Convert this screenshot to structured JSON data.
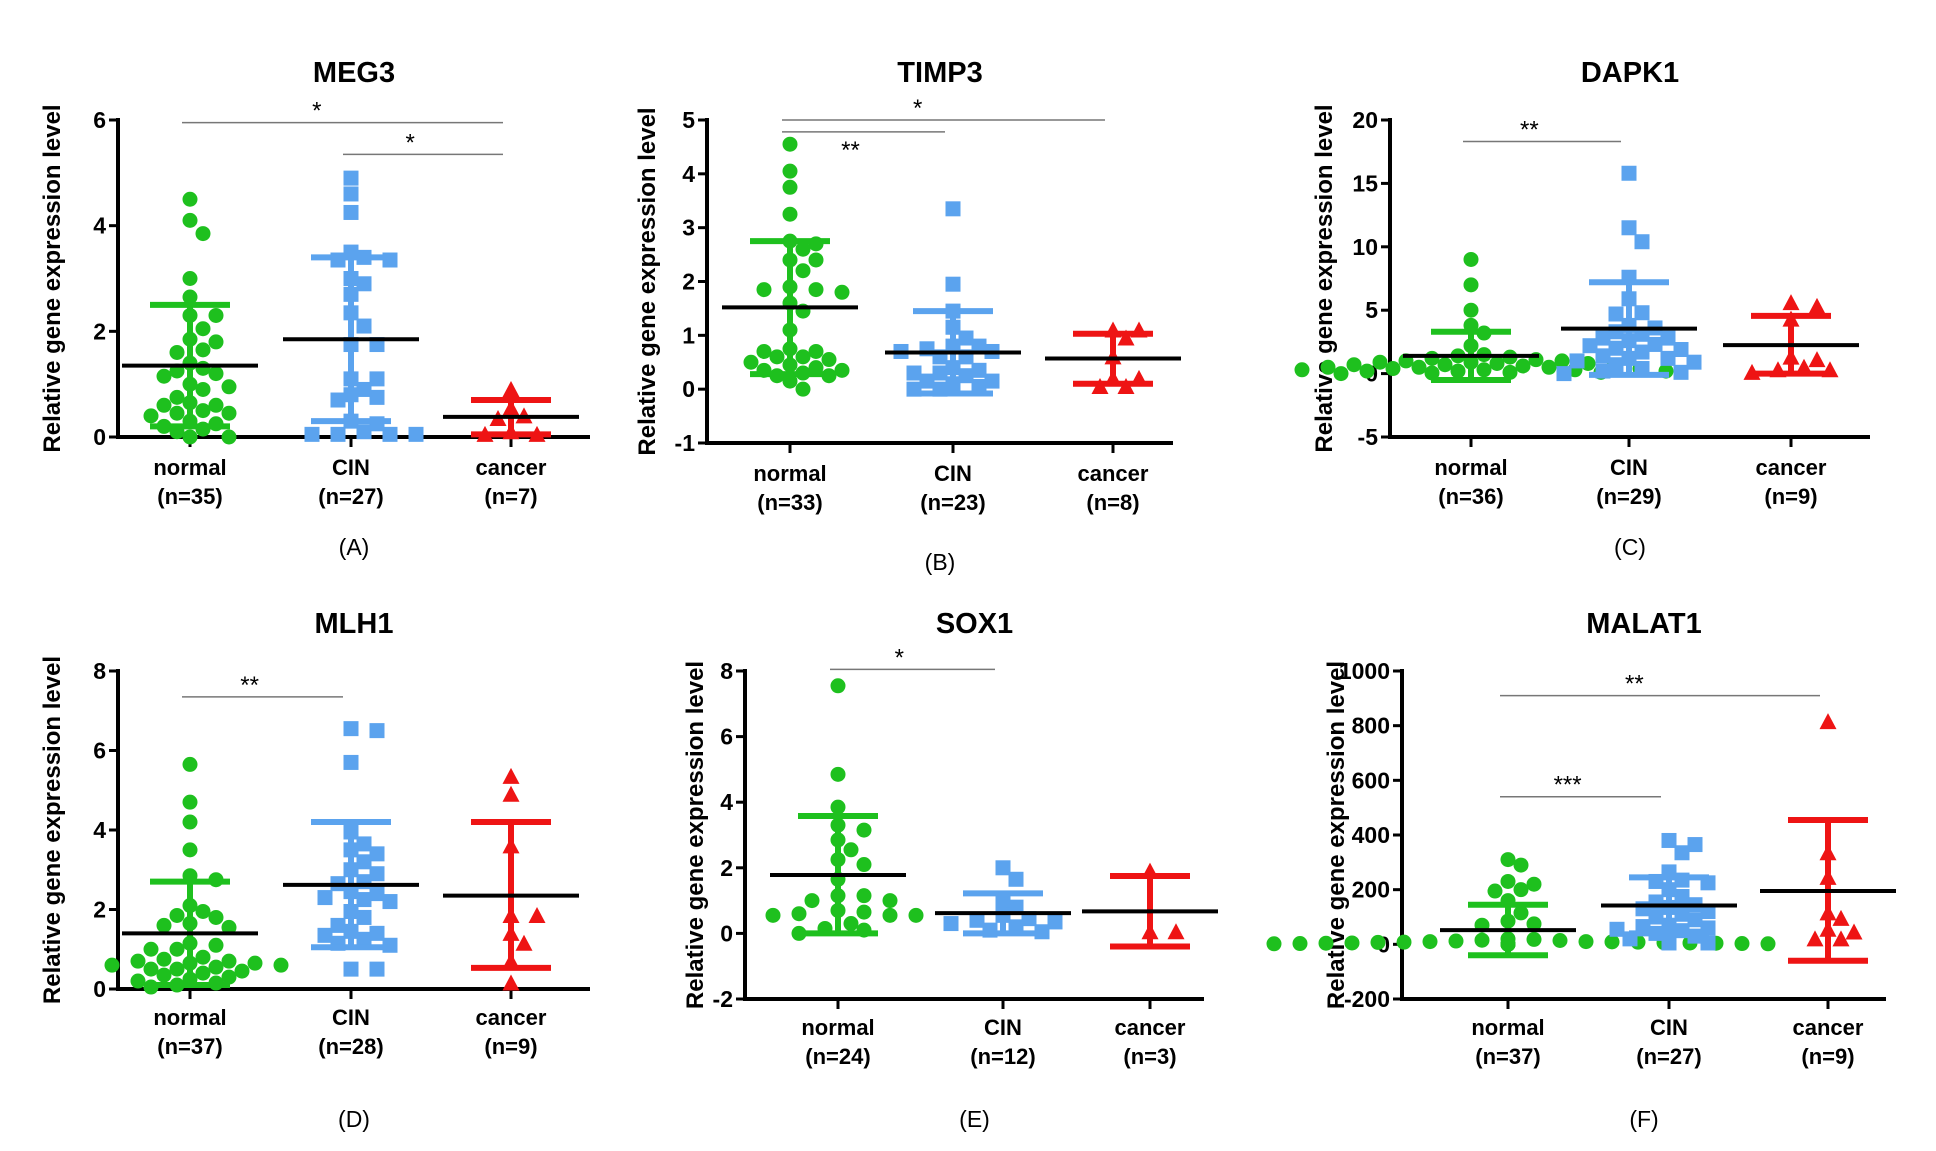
{
  "chart_data": [
    {
      "panel": "(A)",
      "type": "scatter",
      "title": "MEG3",
      "ylabel": "Relative gene expression level",
      "ylim": [
        0,
        6
      ],
      "yticks": [
        0,
        2,
        4,
        6
      ],
      "groups": [
        {
          "name": "normal",
          "n_label": "(n=35)",
          "marker": "circle",
          "color": "#1ec01e",
          "mean": 1.35,
          "sd_low": 0.2,
          "sd_high": 2.5,
          "values": [
            4.5,
            4.1,
            3.85,
            3.0,
            2.65,
            2.3,
            2.3,
            2.05,
            1.85,
            1.8,
            1.65,
            1.6,
            1.4,
            1.3,
            1.25,
            1.2,
            1.15,
            1.0,
            0.95,
            0.9,
            0.75,
            0.65,
            0.6,
            0.6,
            0.5,
            0.45,
            0.45,
            0.4,
            0.3,
            0.25,
            0.2,
            0.15,
            0.1,
            0.0,
            0.0
          ]
        },
        {
          "name": "CIN",
          "n_label": "(n=27)",
          "marker": "square",
          "color": "#5ba3ee",
          "mean": 1.85,
          "sd_low": 0.3,
          "sd_high": 3.4,
          "values": [
            4.9,
            4.6,
            4.25,
            3.5,
            3.4,
            3.35,
            3.35,
            3.0,
            2.9,
            2.7,
            2.35,
            2.1,
            1.75,
            1.75,
            1.1,
            1.1,
            0.9,
            0.8,
            0.75,
            0.7,
            0.3,
            0.25,
            0.1,
            0.05,
            0.05,
            0.05,
            0.05
          ]
        },
        {
          "name": "cancer",
          "n_label": "(n=7)",
          "marker": "triangle",
          "color": "#ee1414",
          "mean": 0.38,
          "sd_low": 0.05,
          "sd_high": 0.7,
          "values": [
            0.9,
            0.55,
            0.4,
            0.35,
            0.1,
            0.05,
            0.05
          ]
        }
      ],
      "significance": [
        {
          "from": "normal",
          "to": "cancer",
          "y": 5.95,
          "label": "*",
          "label_position": "above"
        },
        {
          "from": "CIN",
          "to": "cancer",
          "y": 5.35,
          "label": "*",
          "label_position": "above"
        }
      ]
    },
    {
      "panel": "(B)",
      "type": "scatter",
      "title": "TIMP3",
      "ylabel": "Relative gene expression level",
      "ylim": [
        -1,
        5
      ],
      "yticks": [
        -1,
        0,
        1,
        2,
        3,
        4,
        5
      ],
      "groups": [
        {
          "name": "normal",
          "n_label": "(n=33)",
          "marker": "circle",
          "color": "#1ec01e",
          "mean": 1.52,
          "sd_low": 0.28,
          "sd_high": 2.75,
          "values": [
            4.55,
            4.05,
            3.75,
            3.25,
            2.75,
            2.7,
            2.6,
            2.4,
            2.4,
            2.2,
            1.9,
            1.85,
            1.85,
            1.8,
            1.6,
            1.45,
            1.1,
            0.75,
            0.7,
            0.7,
            0.6,
            0.6,
            0.55,
            0.5,
            0.45,
            0.4,
            0.35,
            0.35,
            0.3,
            0.25,
            0.25,
            0.15,
            0.0
          ]
        },
        {
          "name": "CIN",
          "n_label": "(n=23)",
          "marker": "square",
          "color": "#5ba3ee",
          "mean": 0.68,
          "sd_low": -0.08,
          "sd_high": 1.45,
          "values": [
            3.35,
            1.95,
            1.45,
            1.15,
            0.95,
            0.8,
            0.8,
            0.75,
            0.7,
            0.7,
            0.6,
            0.6,
            0.4,
            0.35,
            0.3,
            0.3,
            0.25,
            0.15,
            0.15,
            0.1,
            0.05,
            0.0,
            0.0
          ]
        },
        {
          "name": "cancer",
          "n_label": "(n=8)",
          "marker": "triangle",
          "color": "#ee1414",
          "mean": 0.57,
          "sd_low": 0.1,
          "sd_high": 1.03,
          "values": [
            1.1,
            1.1,
            0.95,
            0.6,
            0.2,
            0.2,
            0.05,
            0.05
          ]
        }
      ],
      "significance": [
        {
          "from": "normal",
          "to": "cancer",
          "y": 5.0,
          "label": "*",
          "label_position": "above"
        },
        {
          "from": "normal",
          "to": "CIN",
          "y": 4.78,
          "label": "**",
          "label_position": "below"
        }
      ]
    },
    {
      "panel": "(C)",
      "type": "scatter",
      "title": "DAPK1",
      "ylabel": "Relative gene expression level",
      "ylim": [
        -5,
        20
      ],
      "yticks": [
        -5,
        0,
        5,
        10,
        15,
        20
      ],
      "groups": [
        {
          "name": "normal",
          "n_label": "(n=36)",
          "marker": "circle",
          "color": "#1ec01e",
          "mean": 1.4,
          "sd_low": -0.5,
          "sd_high": 3.3,
          "values": [
            9.0,
            7.0,
            5.0,
            3.8,
            3.2,
            2.2,
            1.5,
            1.4,
            1.3,
            1.2,
            1.1,
            1.0,
            1.0,
            0.9,
            0.9,
            0.8,
            0.8,
            0.7,
            0.7,
            0.6,
            0.6,
            0.5,
            0.5,
            0.5,
            0.4,
            0.4,
            0.3,
            0.3,
            0.3,
            0.2,
            0.2,
            0.2,
            0.1,
            0.1,
            0.05,
            0.0
          ]
        },
        {
          "name": "CIN",
          "n_label": "(n=29)",
          "marker": "square",
          "color": "#5ba3ee",
          "mean": 3.55,
          "sd_low": -0.1,
          "sd_high": 7.2,
          "values": [
            15.8,
            11.5,
            10.4,
            7.6,
            5.9,
            4.8,
            4.7,
            3.8,
            3.6,
            3.3,
            3.1,
            2.8,
            2.8,
            2.6,
            2.3,
            2.2,
            2.0,
            1.9,
            1.7,
            1.4,
            1.2,
            1.2,
            1.0,
            0.9,
            0.7,
            0.4,
            0.2,
            0.1,
            0.0
          ]
        },
        {
          "name": "cancer",
          "n_label": "(n=9)",
          "marker": "triangle",
          "color": "#ee1414",
          "mean": 2.25,
          "sd_low": 0.0,
          "sd_high": 4.55,
          "values": [
            5.6,
            5.3,
            4.3,
            1.3,
            1.1,
            0.5,
            0.3,
            0.3,
            0.1
          ]
        }
      ],
      "significance": [
        {
          "from": "normal",
          "to": "CIN",
          "y": 18.3,
          "label": "**",
          "label_position": "above"
        }
      ]
    },
    {
      "panel": "(D)",
      "type": "scatter",
      "title": "MLH1",
      "ylabel": "Relative gene expression level",
      "ylim": [
        0,
        8
      ],
      "yticks": [
        0,
        2,
        4,
        6,
        8
      ],
      "groups": [
        {
          "name": "normal",
          "n_label": "(n=37)",
          "marker": "circle",
          "color": "#1ec01e",
          "mean": 1.4,
          "sd_low": 0.1,
          "sd_high": 2.7,
          "values": [
            5.65,
            4.7,
            4.2,
            3.5,
            2.85,
            2.75,
            2.1,
            1.95,
            1.85,
            1.8,
            1.65,
            1.6,
            1.55,
            1.15,
            1.1,
            1.0,
            1.0,
            0.8,
            0.75,
            0.7,
            0.7,
            0.65,
            0.65,
            0.6,
            0.6,
            0.55,
            0.5,
            0.5,
            0.45,
            0.4,
            0.35,
            0.3,
            0.25,
            0.2,
            0.15,
            0.1,
            0.05
          ]
        },
        {
          "name": "CIN",
          "n_label": "(n=28)",
          "marker": "square",
          "color": "#5ba3ee",
          "mean": 2.62,
          "sd_low": 1.05,
          "sd_high": 4.2,
          "values": [
            6.55,
            6.5,
            5.7,
            3.95,
            3.65,
            3.5,
            3.4,
            3.2,
            3.0,
            2.9,
            2.7,
            2.65,
            2.45,
            2.4,
            2.3,
            2.25,
            2.2,
            1.95,
            1.8,
            1.6,
            1.45,
            1.4,
            1.35,
            1.25,
            1.15,
            1.1,
            0.5,
            0.5
          ]
        },
        {
          "name": "cancer",
          "n_label": "(n=9)",
          "marker": "triangle",
          "color": "#ee1414",
          "mean": 2.35,
          "sd_low": 0.53,
          "sd_high": 4.2,
          "values": [
            5.35,
            4.9,
            3.6,
            1.85,
            1.85,
            1.4,
            1.15,
            0.7,
            0.15
          ]
        }
      ],
      "significance": [
        {
          "from": "normal",
          "to": "CIN",
          "y": 7.35,
          "label": "**",
          "label_position": "above"
        }
      ]
    },
    {
      "panel": "(E)",
      "type": "scatter",
      "title": "SOX1",
      "ylabel": "Relative gene expression level",
      "ylim": [
        -2,
        8
      ],
      "yticks": [
        -2,
        0,
        2,
        4,
        6,
        8
      ],
      "groups": [
        {
          "name": "normal",
          "n_label": "(n=24)",
          "marker": "circle",
          "color": "#1ec01e",
          "mean": 1.78,
          "sd_low": 0.0,
          "sd_high": 3.58,
          "values": [
            7.55,
            4.85,
            3.85,
            3.3,
            3.15,
            2.85,
            2.55,
            2.25,
            2.1,
            1.65,
            1.15,
            1.15,
            1.0,
            1.0,
            0.7,
            0.65,
            0.6,
            0.55,
            0.55,
            0.55,
            0.3,
            0.15,
            0.1,
            0.0
          ]
        },
        {
          "name": "CIN",
          "n_label": "(n=12)",
          "marker": "square",
          "color": "#5ba3ee",
          "mean": 0.62,
          "sd_low": 0.0,
          "sd_high": 1.22,
          "values": [
            2.0,
            1.65,
            1.0,
            0.8,
            0.55,
            0.45,
            0.4,
            0.35,
            0.3,
            0.2,
            0.1,
            0.05
          ]
        },
        {
          "name": "cancer",
          "n_label": "(n=3)",
          "marker": "triangle",
          "color": "#ee1414",
          "mean": 0.67,
          "sd_low": -0.4,
          "sd_high": 1.75,
          "values": [
            1.9,
            0.05,
            0.05
          ]
        }
      ],
      "significance": [
        {
          "from": "normal",
          "to": "CIN",
          "y": 8.05,
          "label": "*",
          "label_position": "above"
        }
      ]
    },
    {
      "panel": "(F)",
      "type": "scatter",
      "title": "MALAT1",
      "ylabel": "Relative gene expression level",
      "ylim": [
        -200,
        1000
      ],
      "yticks": [
        -200,
        0,
        200,
        400,
        600,
        800,
        1000
      ],
      "groups": [
        {
          "name": "normal",
          "n_label": "(n=37)",
          "marker": "circle",
          "color": "#1ec01e",
          "mean": 52,
          "sd_low": -40,
          "sd_high": 145,
          "values": [
            310,
            290,
            230,
            220,
            200,
            195,
            160,
            115,
            85,
            75,
            70,
            20,
            18,
            15,
            14,
            12,
            10,
            10,
            9,
            8,
            8,
            7,
            6,
            5,
            5,
            4,
            4,
            3,
            3,
            2,
            2,
            2,
            1,
            1,
            0,
            0,
            0
          ]
        },
        {
          "name": "CIN",
          "n_label": "(n=27)",
          "marker": "square",
          "color": "#5ba3ee",
          "mean": 142,
          "sd_low": 40,
          "sd_high": 245,
          "values": [
            380,
            365,
            335,
            265,
            235,
            230,
            225,
            200,
            175,
            155,
            145,
            135,
            130,
            120,
            110,
            100,
            90,
            70,
            65,
            60,
            55,
            50,
            40,
            30,
            20,
            5,
            5
          ]
        },
        {
          "name": "cancer",
          "n_label": "(n=9)",
          "marker": "triangle",
          "color": "#ee1414",
          "mean": 195,
          "sd_low": -60,
          "sd_high": 455,
          "values": [
            815,
            335,
            245,
            115,
            95,
            55,
            45,
            20,
            20
          ]
        }
      ],
      "significance": [
        {
          "from": "normal",
          "to": "cancer",
          "y": 910,
          "label": "**",
          "label_position": "above"
        },
        {
          "from": "normal",
          "to": "CIN",
          "y": 540,
          "label": "***",
          "label_position": "above"
        }
      ]
    }
  ]
}
